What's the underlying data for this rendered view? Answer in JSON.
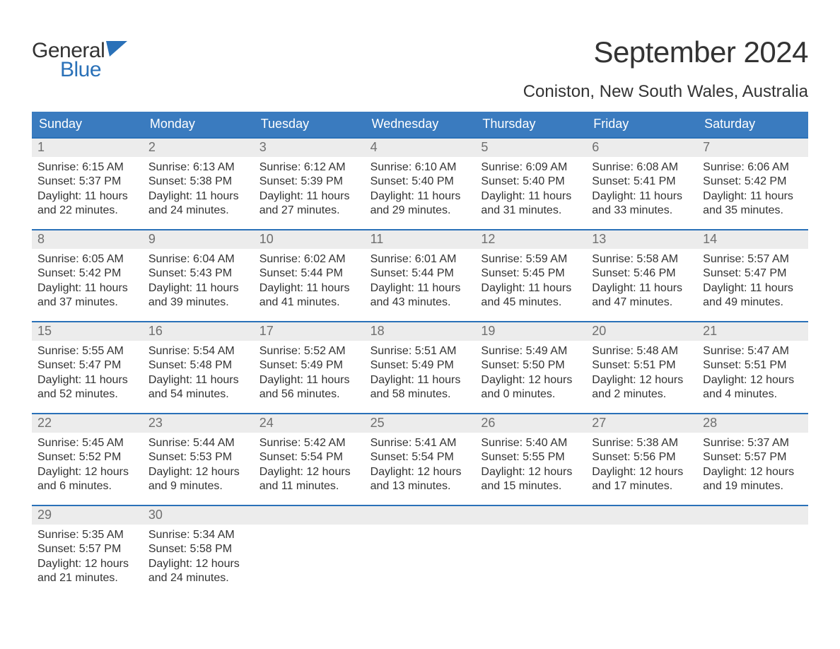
{
  "logo": {
    "general": "General",
    "blue": "Blue",
    "flag_color": "#2a71b8",
    "general_color": "#333333"
  },
  "title": "September 2024",
  "location": "Coniston, New South Wales, Australia",
  "colors": {
    "header_bg": "#3a7bbf",
    "header_text": "#ffffff",
    "week_border": "#2a71b8",
    "daynum_bg": "#ececec",
    "daynum_text": "#6f6f6f",
    "body_text": "#333333",
    "page_bg": "#ffffff"
  },
  "typography": {
    "title_fontsize": 42,
    "location_fontsize": 24,
    "dow_fontsize": 18,
    "daynum_fontsize": 18,
    "body_fontsize": 16
  },
  "days_of_week": [
    "Sunday",
    "Monday",
    "Tuesday",
    "Wednesday",
    "Thursday",
    "Friday",
    "Saturday"
  ],
  "weeks": [
    [
      {
        "num": "1",
        "sunrise": "Sunrise: 6:15 AM",
        "sunset": "Sunset: 5:37 PM",
        "daylight": "Daylight: 11 hours and 22 minutes."
      },
      {
        "num": "2",
        "sunrise": "Sunrise: 6:13 AM",
        "sunset": "Sunset: 5:38 PM",
        "daylight": "Daylight: 11 hours and 24 minutes."
      },
      {
        "num": "3",
        "sunrise": "Sunrise: 6:12 AM",
        "sunset": "Sunset: 5:39 PM",
        "daylight": "Daylight: 11 hours and 27 minutes."
      },
      {
        "num": "4",
        "sunrise": "Sunrise: 6:10 AM",
        "sunset": "Sunset: 5:40 PM",
        "daylight": "Daylight: 11 hours and 29 minutes."
      },
      {
        "num": "5",
        "sunrise": "Sunrise: 6:09 AM",
        "sunset": "Sunset: 5:40 PM",
        "daylight": "Daylight: 11 hours and 31 minutes."
      },
      {
        "num": "6",
        "sunrise": "Sunrise: 6:08 AM",
        "sunset": "Sunset: 5:41 PM",
        "daylight": "Daylight: 11 hours and 33 minutes."
      },
      {
        "num": "7",
        "sunrise": "Sunrise: 6:06 AM",
        "sunset": "Sunset: 5:42 PM",
        "daylight": "Daylight: 11 hours and 35 minutes."
      }
    ],
    [
      {
        "num": "8",
        "sunrise": "Sunrise: 6:05 AM",
        "sunset": "Sunset: 5:42 PM",
        "daylight": "Daylight: 11 hours and 37 minutes."
      },
      {
        "num": "9",
        "sunrise": "Sunrise: 6:04 AM",
        "sunset": "Sunset: 5:43 PM",
        "daylight": "Daylight: 11 hours and 39 minutes."
      },
      {
        "num": "10",
        "sunrise": "Sunrise: 6:02 AM",
        "sunset": "Sunset: 5:44 PM",
        "daylight": "Daylight: 11 hours and 41 minutes."
      },
      {
        "num": "11",
        "sunrise": "Sunrise: 6:01 AM",
        "sunset": "Sunset: 5:44 PM",
        "daylight": "Daylight: 11 hours and 43 minutes."
      },
      {
        "num": "12",
        "sunrise": "Sunrise: 5:59 AM",
        "sunset": "Sunset: 5:45 PM",
        "daylight": "Daylight: 11 hours and 45 minutes."
      },
      {
        "num": "13",
        "sunrise": "Sunrise: 5:58 AM",
        "sunset": "Sunset: 5:46 PM",
        "daylight": "Daylight: 11 hours and 47 minutes."
      },
      {
        "num": "14",
        "sunrise": "Sunrise: 5:57 AM",
        "sunset": "Sunset: 5:47 PM",
        "daylight": "Daylight: 11 hours and 49 minutes."
      }
    ],
    [
      {
        "num": "15",
        "sunrise": "Sunrise: 5:55 AM",
        "sunset": "Sunset: 5:47 PM",
        "daylight": "Daylight: 11 hours and 52 minutes."
      },
      {
        "num": "16",
        "sunrise": "Sunrise: 5:54 AM",
        "sunset": "Sunset: 5:48 PM",
        "daylight": "Daylight: 11 hours and 54 minutes."
      },
      {
        "num": "17",
        "sunrise": "Sunrise: 5:52 AM",
        "sunset": "Sunset: 5:49 PM",
        "daylight": "Daylight: 11 hours and 56 minutes."
      },
      {
        "num": "18",
        "sunrise": "Sunrise: 5:51 AM",
        "sunset": "Sunset: 5:49 PM",
        "daylight": "Daylight: 11 hours and 58 minutes."
      },
      {
        "num": "19",
        "sunrise": "Sunrise: 5:49 AM",
        "sunset": "Sunset: 5:50 PM",
        "daylight": "Daylight: 12 hours and 0 minutes."
      },
      {
        "num": "20",
        "sunrise": "Sunrise: 5:48 AM",
        "sunset": "Sunset: 5:51 PM",
        "daylight": "Daylight: 12 hours and 2 minutes."
      },
      {
        "num": "21",
        "sunrise": "Sunrise: 5:47 AM",
        "sunset": "Sunset: 5:51 PM",
        "daylight": "Daylight: 12 hours and 4 minutes."
      }
    ],
    [
      {
        "num": "22",
        "sunrise": "Sunrise: 5:45 AM",
        "sunset": "Sunset: 5:52 PM",
        "daylight": "Daylight: 12 hours and 6 minutes."
      },
      {
        "num": "23",
        "sunrise": "Sunrise: 5:44 AM",
        "sunset": "Sunset: 5:53 PM",
        "daylight": "Daylight: 12 hours and 9 minutes."
      },
      {
        "num": "24",
        "sunrise": "Sunrise: 5:42 AM",
        "sunset": "Sunset: 5:54 PM",
        "daylight": "Daylight: 12 hours and 11 minutes."
      },
      {
        "num": "25",
        "sunrise": "Sunrise: 5:41 AM",
        "sunset": "Sunset: 5:54 PM",
        "daylight": "Daylight: 12 hours and 13 minutes."
      },
      {
        "num": "26",
        "sunrise": "Sunrise: 5:40 AM",
        "sunset": "Sunset: 5:55 PM",
        "daylight": "Daylight: 12 hours and 15 minutes."
      },
      {
        "num": "27",
        "sunrise": "Sunrise: 5:38 AM",
        "sunset": "Sunset: 5:56 PM",
        "daylight": "Daylight: 12 hours and 17 minutes."
      },
      {
        "num": "28",
        "sunrise": "Sunrise: 5:37 AM",
        "sunset": "Sunset: 5:57 PM",
        "daylight": "Daylight: 12 hours and 19 minutes."
      }
    ],
    [
      {
        "num": "29",
        "sunrise": "Sunrise: 5:35 AM",
        "sunset": "Sunset: 5:57 PM",
        "daylight": "Daylight: 12 hours and 21 minutes."
      },
      {
        "num": "30",
        "sunrise": "Sunrise: 5:34 AM",
        "sunset": "Sunset: 5:58 PM",
        "daylight": "Daylight: 12 hours and 24 minutes."
      },
      null,
      null,
      null,
      null,
      null
    ]
  ]
}
